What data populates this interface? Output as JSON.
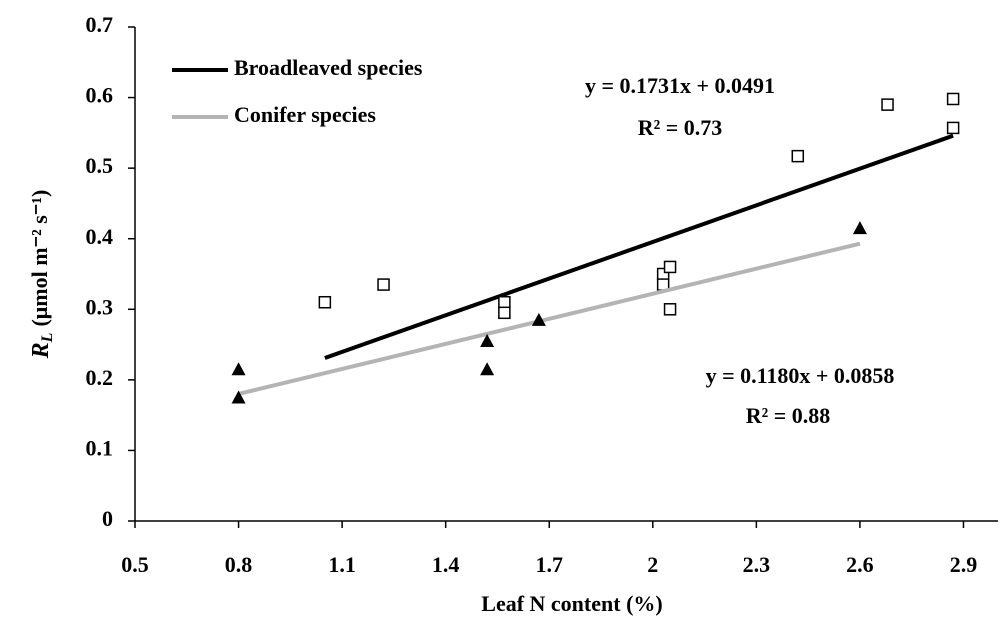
{
  "chart_data": {
    "type": "scatter",
    "x_label": "Leaf N content (%)",
    "y_label": {
      "symbol": "R",
      "subscript": "L",
      "unit": "(μmol m⁻² s⁻¹)"
    },
    "xlim": [
      0.5,
      3.0
    ],
    "xticks": [
      0.5,
      0.8,
      1.1,
      1.4,
      1.7,
      2,
      2.3,
      2.6,
      2.9
    ],
    "ylim": [
      0,
      0.7
    ],
    "yticks": [
      0,
      0.1,
      0.2,
      0.3,
      0.4,
      0.5,
      0.6,
      0.7
    ],
    "legend": "top-left",
    "series": [
      {
        "name": "Broadleaved species",
        "marker": "square",
        "color": "#000000",
        "line_color": "#000000",
        "x": [
          1.05,
          1.22,
          1.57,
          1.57,
          2.03,
          2.03,
          2.05,
          2.05,
          2.42,
          2.68,
          2.87,
          2.87
        ],
        "values": [
          0.31,
          0.335,
          0.31,
          0.295,
          0.35,
          0.335,
          0.36,
          0.3,
          0.517,
          0.59,
          0.598,
          0.557
        ],
        "trend": {
          "x": [
            1.05,
            2.87
          ],
          "values": [
            0.231,
            0.546
          ]
        },
        "equation": "y = 0.1731x + 0.0491",
        "r2": "R² = 0.73"
      },
      {
        "name": "Conifer species",
        "marker": "triangle",
        "color": "#000000",
        "line_color": "#b4b4b4",
        "x": [
          0.8,
          0.8,
          1.52,
          1.52,
          1.67,
          2.6
        ],
        "values": [
          0.215,
          0.175,
          0.255,
          0.215,
          0.285,
          0.415
        ],
        "trend": {
          "x": [
            0.8,
            2.6
          ],
          "values": [
            0.18,
            0.393
          ]
        },
        "equation": "y = 0.1180x + 0.0858",
        "r2": "R² = 0.88"
      }
    ]
  }
}
